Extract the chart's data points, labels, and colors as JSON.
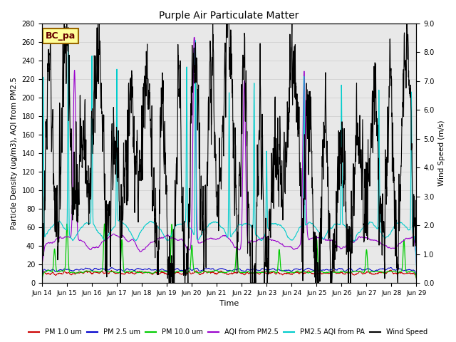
{
  "title": "Purple Air Particulate Matter",
  "xlabel": "Time",
  "ylabel_left": "Particle Density (ug/m3), AQI from PM2.5",
  "ylabel_right": "Wind Speed (m/s)",
  "ylim_left": [
    0,
    280
  ],
  "ylim_right": [
    0.0,
    9.0
  ],
  "yticks_left": [
    0,
    20,
    40,
    60,
    80,
    100,
    120,
    140,
    160,
    180,
    200,
    220,
    240,
    260,
    280
  ],
  "yticks_right": [
    0.0,
    1.0,
    2.0,
    3.0,
    4.0,
    5.0,
    6.0,
    7.0,
    8.0,
    9.0
  ],
  "xtick_labels": [
    "Jun 14",
    "Jun 15",
    "Jun 16",
    "Jun 17",
    "Jun 18",
    "Jun 19",
    "Jun 20",
    "Jun 21",
    "Jun 22",
    "Jun 23",
    "Jun 24",
    "Jun 25",
    "Jun 26",
    "Jun 27",
    "Jun 28",
    "Jun 29"
  ],
  "n_points": 2000,
  "annotation_text": "BC_pa",
  "colors": {
    "pm1": "#cc0000",
    "pm25": "#0000cc",
    "pm10": "#00cc00",
    "aqi_pm25": "#9900cc",
    "aqi_pa": "#00cccc",
    "wind": "#000000",
    "annotation_bg": "#ffff99",
    "annotation_border": "#996600",
    "annotation_text": "#660000",
    "grid": "#cccccc",
    "plot_bg": "#e8e8e8"
  },
  "legend_labels": [
    "PM 1.0 um",
    "PM 2.5 um",
    "PM 10.0 um",
    "AQI from PM2.5",
    "PM2.5 AQI from PA",
    "Wind Speed"
  ],
  "seed": 12345
}
